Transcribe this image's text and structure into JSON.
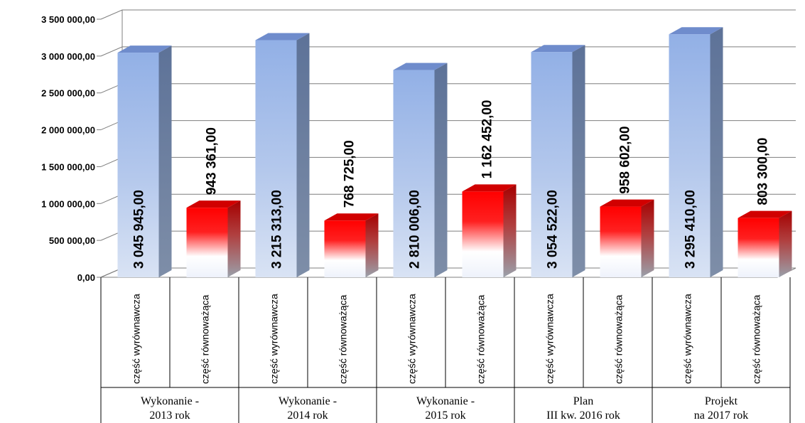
{
  "chart_data": {
    "type": "bar",
    "ylim": [
      0,
      3500000
    ],
    "yticks": [
      "0,00",
      "500 000,00",
      "1 000 000,00",
      "1 500 000,00",
      "2 000 000,00",
      "2 500 000,00",
      "3 000 000,00",
      "3 500 000,00"
    ],
    "grid": true,
    "legend": "none",
    "groups": [
      {
        "label_line1": "Wykonanie -",
        "label_line2": "2013 rok"
      },
      {
        "label_line1": "Wykonanie -",
        "label_line2": "2014 rok"
      },
      {
        "label_line1": "Wykonanie -",
        "label_line2": "2015 rok"
      },
      {
        "label_line1": "Plan",
        "label_line2": "III kw. 2016 rok"
      },
      {
        "label_line1": "Projekt",
        "label_line2": "na 2017 rok"
      }
    ],
    "bars": [
      {
        "category": "część wyrównawcza",
        "value": 3045945.0,
        "label": "3 045 945,00",
        "kind": "blue"
      },
      {
        "category": "część równoważąca",
        "value": 943361.0,
        "label": "943 361,00",
        "kind": "red"
      },
      {
        "category": "część wyrównawcza",
        "value": 3215313.0,
        "label": "3 215 313,00",
        "kind": "blue"
      },
      {
        "category": "część równoważąca",
        "value": 768725.0,
        "label": "768 725,00",
        "kind": "red"
      },
      {
        "category": "część wyrównawcza",
        "value": 2810006.0,
        "label": "2 810 006,00",
        "kind": "blue"
      },
      {
        "category": "część równoważąca",
        "value": 1162452.0,
        "label": "1 162 452,00",
        "kind": "red"
      },
      {
        "category": "część wyrównawcza",
        "value": 3054522.0,
        "label": "3 054 522,00",
        "kind": "blue"
      },
      {
        "category": "część równoważąca",
        "value": 958602.0,
        "label": "958 602,00",
        "kind": "red"
      },
      {
        "category": "część wyrównawcza",
        "value": 3295410.0,
        "label": "3 295 410,00",
        "kind": "blue"
      },
      {
        "category": "część równoważąca",
        "value": 803300.0,
        "label": "803 300,00",
        "kind": "red"
      }
    ],
    "colors": {
      "blue": "#9db6e2",
      "red": "#ff0000"
    }
  }
}
